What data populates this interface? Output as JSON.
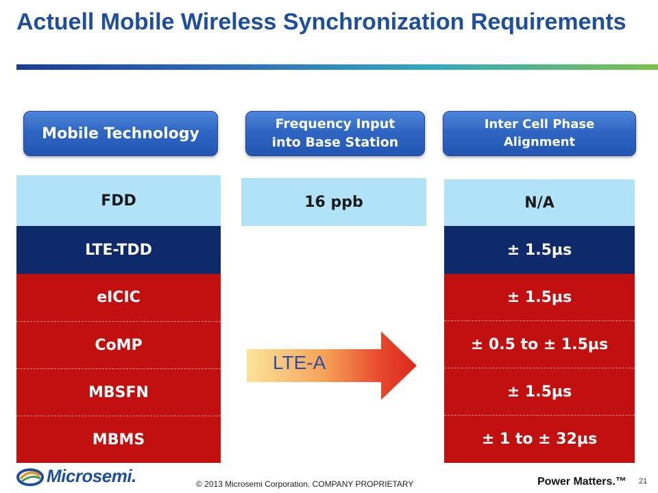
{
  "slide": {
    "title": "Actuell Mobile Wireless Synchronization Requirements"
  },
  "headers": {
    "technology": "Mobile Technology",
    "frequency_line1": "Frequency Input",
    "frequency_line2": "into Base Station",
    "phase_line1": "Inter Cell Phase",
    "phase_line2": "Alignment"
  },
  "technologies": [
    "FDD",
    "LTE-TDD",
    "eICIC",
    "CoMP",
    "MBSFN",
    "MBMS"
  ],
  "frequency": [
    "16 ppb"
  ],
  "phase": [
    "N/A",
    "± 1.5µs",
    "± 1.5µs",
    "± 0.5 to ± 1.5µs",
    "± 1.5µs",
    "± 1 to ± 32µs"
  ],
  "arrow": {
    "label": "LTE-A"
  },
  "colors": {
    "title": "#1f4e9c",
    "light_blue": "#b0e3f7",
    "navy": "#0f2a6b",
    "red": "#c20f0f"
  },
  "footer": {
    "logo_text": "Microsemi.",
    "copyright": "© 2013 Microsemi Corporation. COMPANY PROPRIETARY",
    "tagline": "Power Matters.™",
    "page_number": "21"
  }
}
